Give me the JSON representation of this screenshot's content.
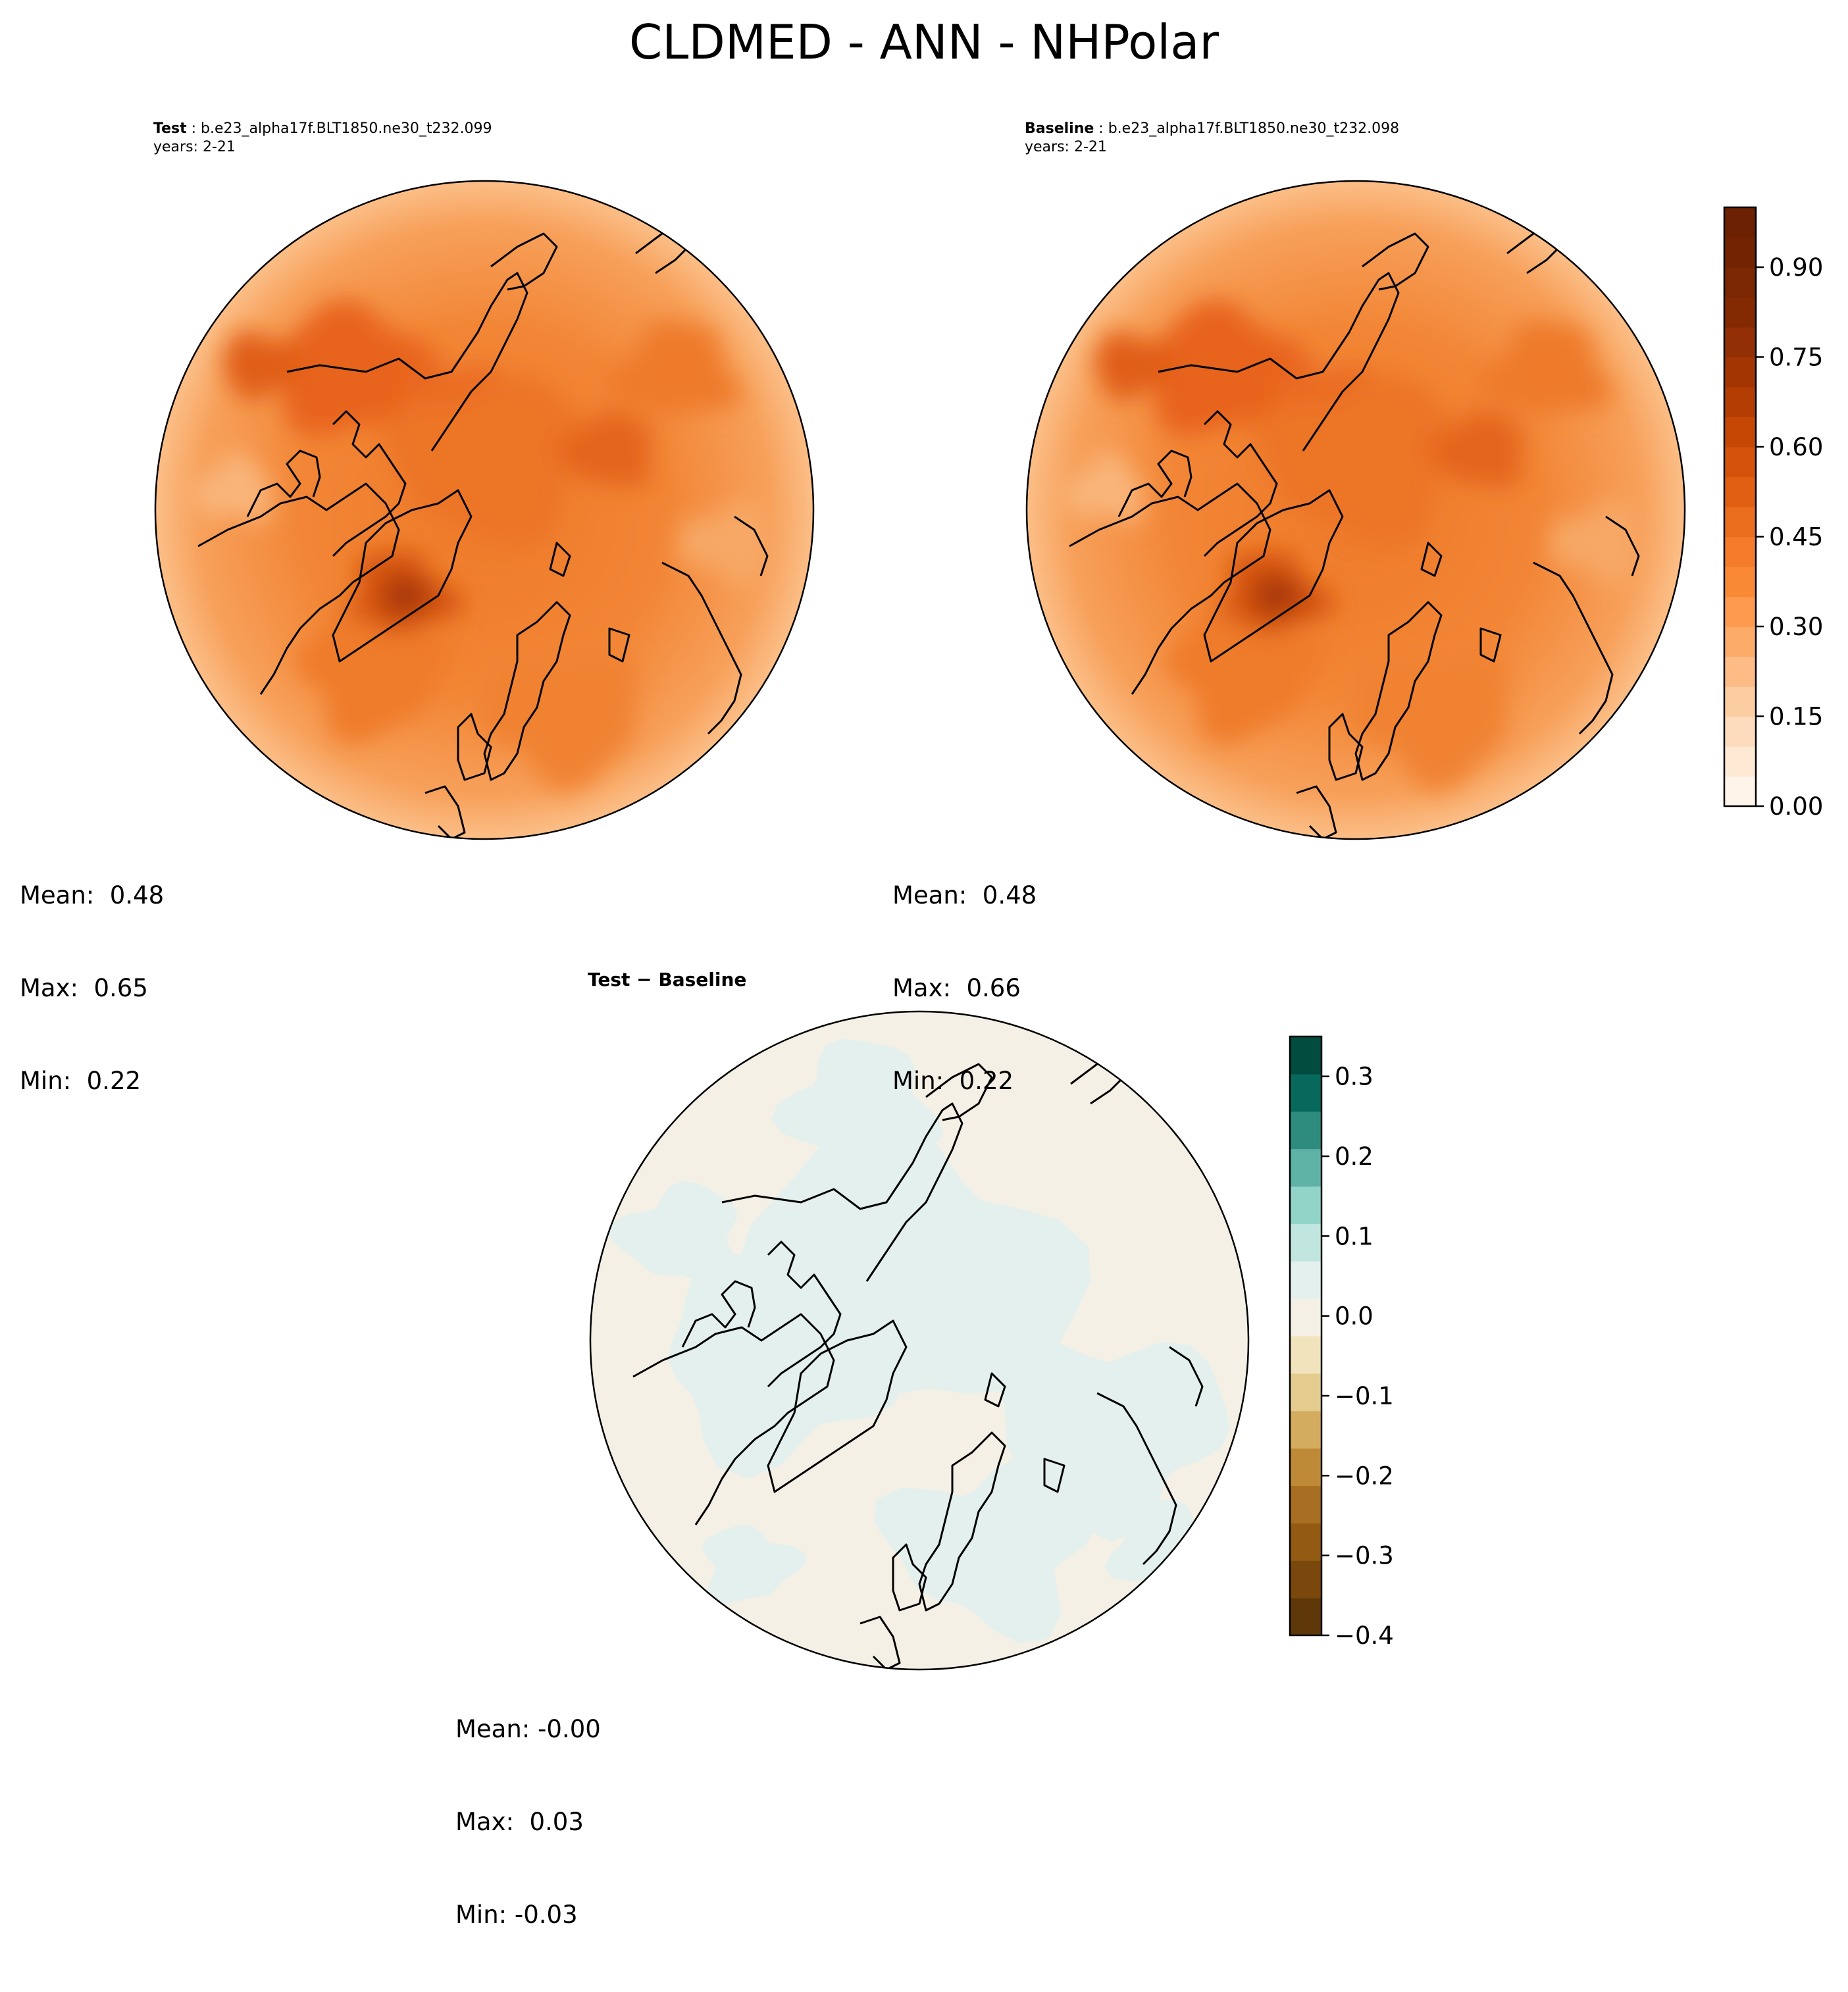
{
  "figure": {
    "suptitle": "CLDMED - ANN - NHPolar"
  },
  "panels": {
    "test": {
      "label": "Test",
      "case_name": "b.e23_alpha17f.BLT1850.ne30_t232.099",
      "years": "years: 2-21",
      "stats": {
        "mean": "Mean:  0.48",
        "max": "Max:  0.65",
        "min": "Min:  0.22"
      }
    },
    "baseline": {
      "label": "Baseline",
      "case_name": "b.e23_alpha17f.BLT1850.ne30_t232.098",
      "years": "years: 2-21",
      "stats": {
        "mean": "Mean:  0.48",
        "max": "Max:  0.66",
        "min": "Min:  0.22"
      }
    },
    "diff": {
      "title": "Test − Baseline",
      "stats": {
        "mean": "Mean: -0.00",
        "max": "Max:  0.03",
        "min": "Min: -0.03"
      }
    }
  },
  "colorbars": {
    "main": {
      "colormap": "Oranges",
      "range": [
        0.0,
        1.0
      ],
      "levels": 20,
      "ticks": [
        "0.00",
        "0.15",
        "0.30",
        "0.45",
        "0.60",
        "0.75",
        "0.90"
      ],
      "tick_values": [
        0.0,
        0.15,
        0.3,
        0.45,
        0.6,
        0.75,
        0.9
      ],
      "colors": [
        "#fff4e9",
        "#fee9d4",
        "#fddcbd",
        "#fdcda2",
        "#fdbc86",
        "#fdab69",
        "#fd9a4f",
        "#fa8935",
        "#f47b2a",
        "#eb6e1e",
        "#e05f12",
        "#d45209",
        "#c64704",
        "#b43d03",
        "#a33503",
        "#922f04",
        "#842a03",
        "#7a2702",
        "#712302",
        "#6b2102"
      ]
    },
    "diff": {
      "colormap": "BrBG",
      "range": [
        -0.4,
        0.35
      ],
      "ticks": [
        "−0.4",
        "−0.3",
        "−0.2",
        "−0.1",
        "0.0",
        "0.1",
        "0.2",
        "0.3"
      ],
      "tick_values": [
        -0.4,
        -0.3,
        -0.2,
        -0.1,
        0.0,
        0.1,
        0.2,
        0.3
      ],
      "colors": [
        "#5e3808",
        "#7a470c",
        "#925a12",
        "#a86e22",
        "#bf8a37",
        "#d4ac5f",
        "#e4cc8f",
        "#f1e3bc",
        "#f4f0e5",
        "#e3f0ee",
        "#c0e6df",
        "#92d4c8",
        "#5fb3a6",
        "#2e8c7f",
        "#07695b",
        "#014c3f"
      ]
    }
  },
  "map_colors": {
    "test_base": "#f28a3d",
    "diff_base": "#f4f0e5",
    "diff_positive": "#e3f0ee"
  }
}
